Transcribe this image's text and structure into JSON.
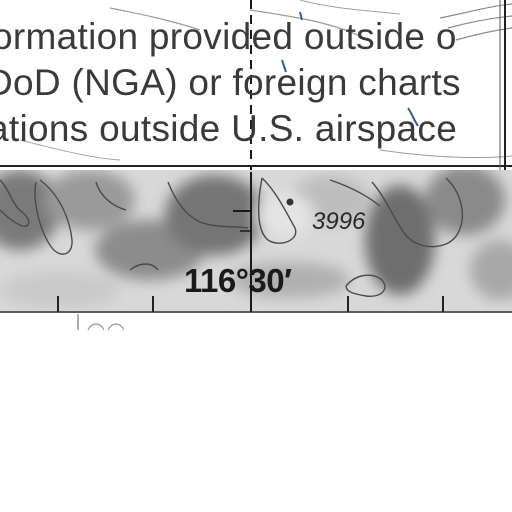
{
  "notice": {
    "line1": "ormation provided outside o",
    "line2": "DoD (NGA) or foreign charts",
    "line3": "ations outside U.S. airspace"
  },
  "longitude_label": "116°30′",
  "elevation_label": "3996"
}
